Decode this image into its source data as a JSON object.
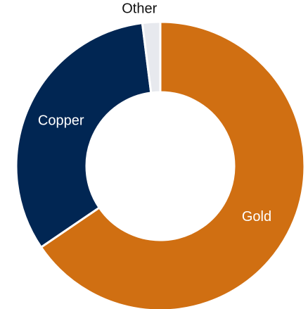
{
  "chart_data": {
    "type": "pie",
    "donut": true,
    "title": "",
    "start_angle_deg": 0,
    "direction": "clockwise",
    "slices": [
      {
        "label": "Gold",
        "value": 65.5,
        "color": "#d06f12",
        "label_color": "#ffffff",
        "label_position": "inside"
      },
      {
        "label": "Copper",
        "value": 32.5,
        "color": "#012653",
        "label_color": "#ffffff",
        "label_position": "inside"
      },
      {
        "label": "Other",
        "value": 2.0,
        "color": "#e7e9ee",
        "label_color": "#111111",
        "label_position": "outside"
      }
    ]
  }
}
